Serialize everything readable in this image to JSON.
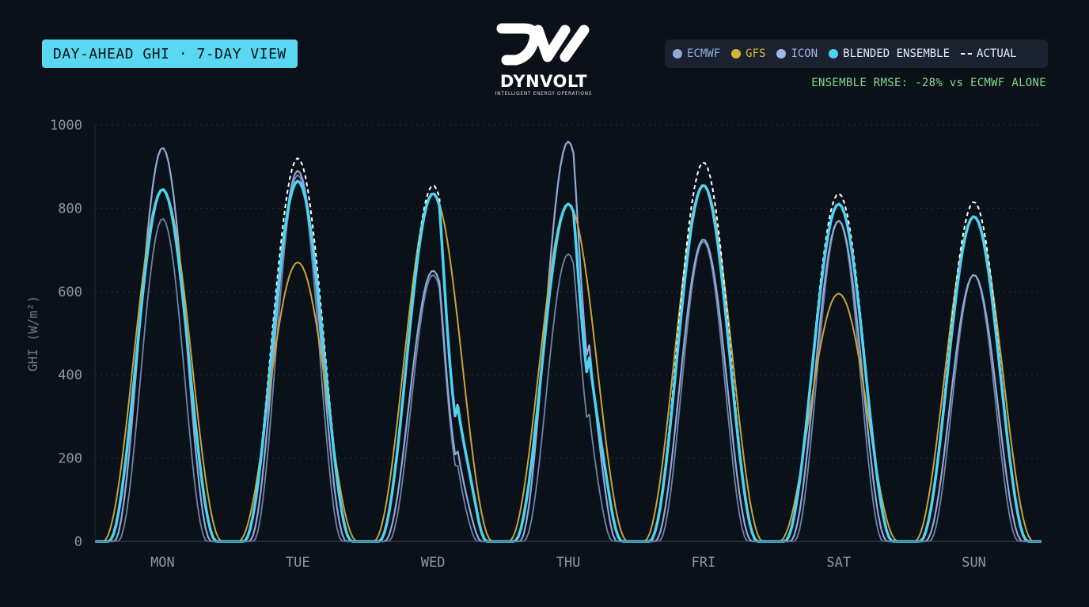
{
  "header": {
    "title": "DAY-AHEAD GHI · 7-DAY VIEW",
    "logo": {
      "wordmark": "DYNVOLT",
      "tagline": "INTELLIGENT ENERGY OPERATIONS",
      "icon": "dynvolt-logo-icon"
    },
    "rmse_note": "ENSEMBLE RMSE: -28% vs ECMWF ALONE"
  },
  "legend": [
    {
      "label": "ECMWF",
      "color": "#8fa9d9",
      "marker": "dot"
    },
    {
      "label": "GFS",
      "color": "#d8b43a",
      "marker": "dot"
    },
    {
      "label": "ICON",
      "color": "#9fb6e8",
      "marker": "dot"
    },
    {
      "label": "BLENDED ENSEMBLE",
      "color": "#4fd2f0",
      "marker": "dot"
    },
    {
      "label": "ACTUAL",
      "color": "#ffffff",
      "marker": "dash"
    }
  ],
  "colors": {
    "background": "#0b1119",
    "grid": "#2a3442",
    "ECMWF": "#8fa9d9",
    "GFS": "#c9a33a",
    "ICON": "#6f84a8",
    "BLENDED ENSEMBLE": "#4fd2f0",
    "ACTUAL": "#ffffff"
  },
  "chart_data": {
    "type": "line",
    "ylabel": "GHI (W/m²)",
    "xlabel": "",
    "ylim": [
      0,
      1000
    ],
    "yticks": [
      0,
      200,
      400,
      600,
      800,
      1000
    ],
    "categories": [
      "MON",
      "TUE",
      "WED",
      "THU",
      "FRI",
      "SAT",
      "SUN"
    ],
    "grid": true,
    "legend_position": "top-right",
    "x_unit": "day index (daily peak at x.5)",
    "series": [
      {
        "name": "ECMWF",
        "daily_peaks": [
          945,
          890,
          650,
          960,
          725,
          770,
          640
        ]
      },
      {
        "name": "GFS",
        "daily_peaks": [
          845,
          670,
          835,
          810,
          855,
          595,
          780
        ]
      },
      {
        "name": "ICON",
        "daily_peaks": [
          775,
          880,
          640,
          690,
          720,
          770,
          640
        ]
      },
      {
        "name": "BLENDED ENSEMBLE",
        "daily_peaks": [
          845,
          865,
          835,
          810,
          855,
          810,
          780
        ]
      },
      {
        "name": "ACTUAL",
        "daily_peaks": [
          845,
          920,
          855,
          810,
          910,
          835,
          815
        ]
      }
    ]
  }
}
